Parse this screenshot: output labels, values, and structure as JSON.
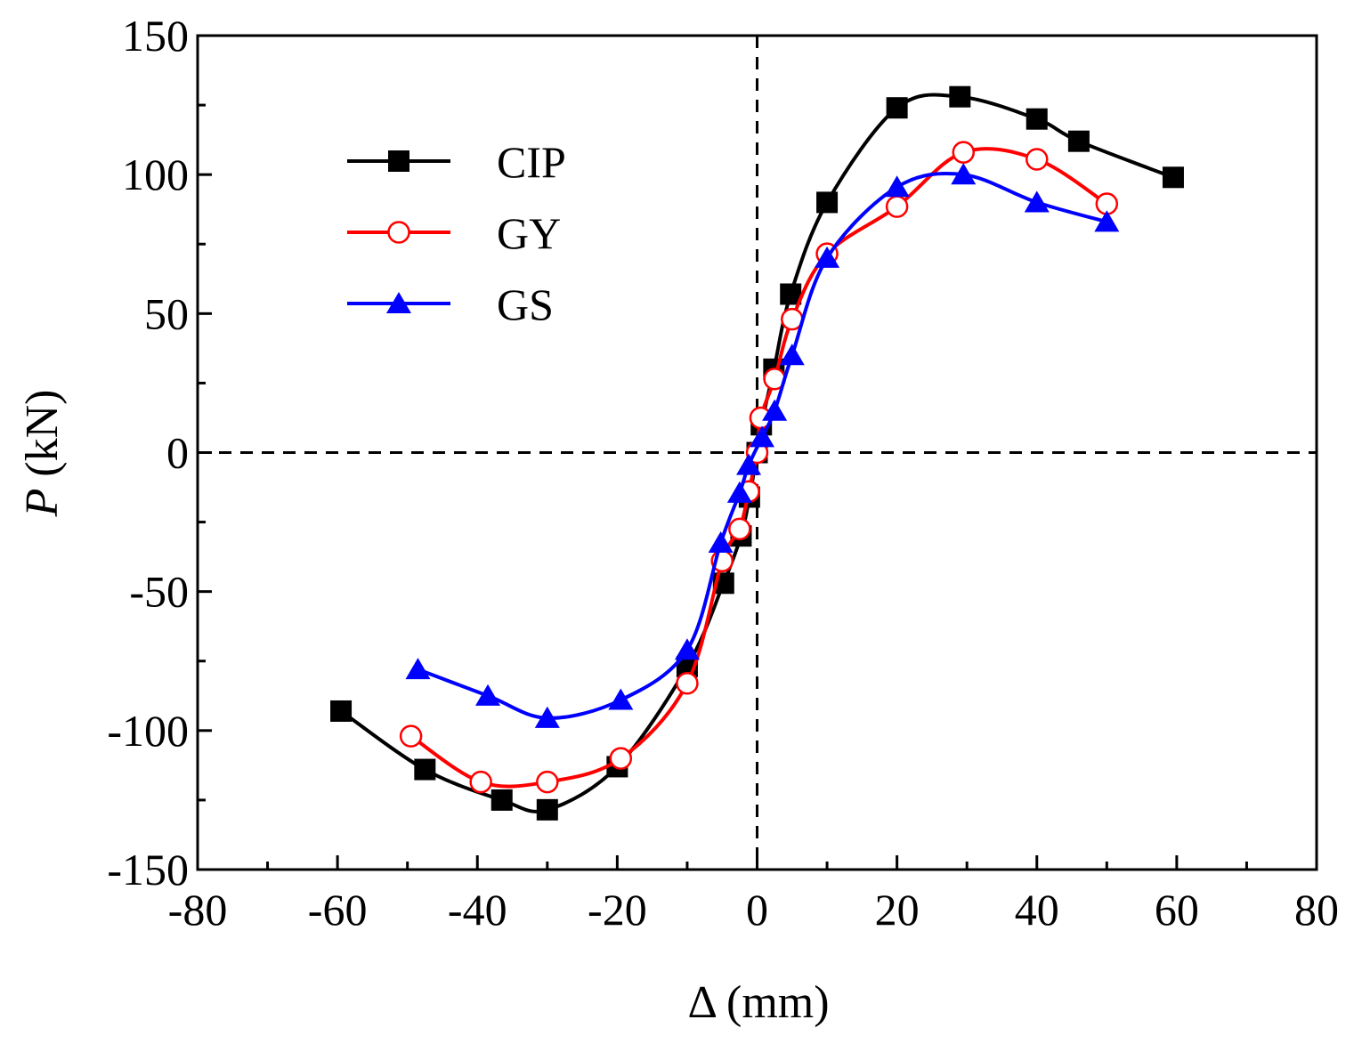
{
  "chart_data": {
    "type": "line",
    "title": "",
    "xlabel": "Δ (mm)",
    "ylabel_symbol": "P",
    "ylabel_unit": " (kN)",
    "xlim": [
      -80,
      80
    ],
    "ylim": [
      -150,
      150
    ],
    "xticks": [
      -80,
      -60,
      -40,
      -20,
      0,
      20,
      40,
      60,
      80
    ],
    "yticks": [
      -150,
      -100,
      -50,
      0,
      50,
      100,
      150
    ],
    "x_minor_step": 10,
    "y_minor_step": 25,
    "grid": false,
    "reference_lines": [
      {
        "axis": "x",
        "value": 0,
        "style": "dashed"
      },
      {
        "axis": "y",
        "value": 0,
        "style": "dashed"
      }
    ],
    "legend_position": "top-left",
    "series": [
      {
        "name": "CIP",
        "color": "#000000",
        "marker": "filled-square",
        "x": [
          -59.5,
          -47.5,
          -36.5,
          -30,
          -20,
          -10,
          -4.8,
          -2.3,
          -1.1,
          0,
          0.6,
          2.4,
          4.8,
          10,
          20,
          29,
          40,
          46,
          59.5
        ],
        "y": [
          -93,
          -114,
          -125,
          -128.5,
          -113,
          -77,
          -47,
          -30,
          -16,
          0,
          10,
          30,
          57,
          90,
          124,
          128,
          120,
          112,
          99
        ]
      },
      {
        "name": "GY",
        "color": "#ff0000",
        "marker": "open-circle",
        "x": [
          -49.5,
          -39.5,
          -30,
          -19.5,
          -10,
          -5,
          -2.5,
          -1.2,
          0,
          0.5,
          2.5,
          5,
          10,
          20,
          29.5,
          40,
          50
        ],
        "y": [
          -102,
          -118.5,
          -118.5,
          -110,
          -83,
          -39,
          -27.5,
          -14,
          0,
          12.5,
          26.5,
          48,
          71.5,
          88.5,
          108,
          105.5,
          89.5
        ]
      },
      {
        "name": "GS",
        "color": "#0000ff",
        "marker": "filled-triangle",
        "x": [
          -48.5,
          -38.5,
          -30,
          -19.5,
          -10,
          -5.2,
          -2.5,
          -1.2,
          0.7,
          2.5,
          5,
          10,
          20,
          29.5,
          40,
          50
        ],
        "y": [
          -78,
          -87.5,
          -95.5,
          -89,
          -71,
          -32.5,
          -14.5,
          -4.5,
          5.5,
          15,
          35,
          70,
          95.5,
          100,
          90,
          83
        ]
      }
    ]
  }
}
